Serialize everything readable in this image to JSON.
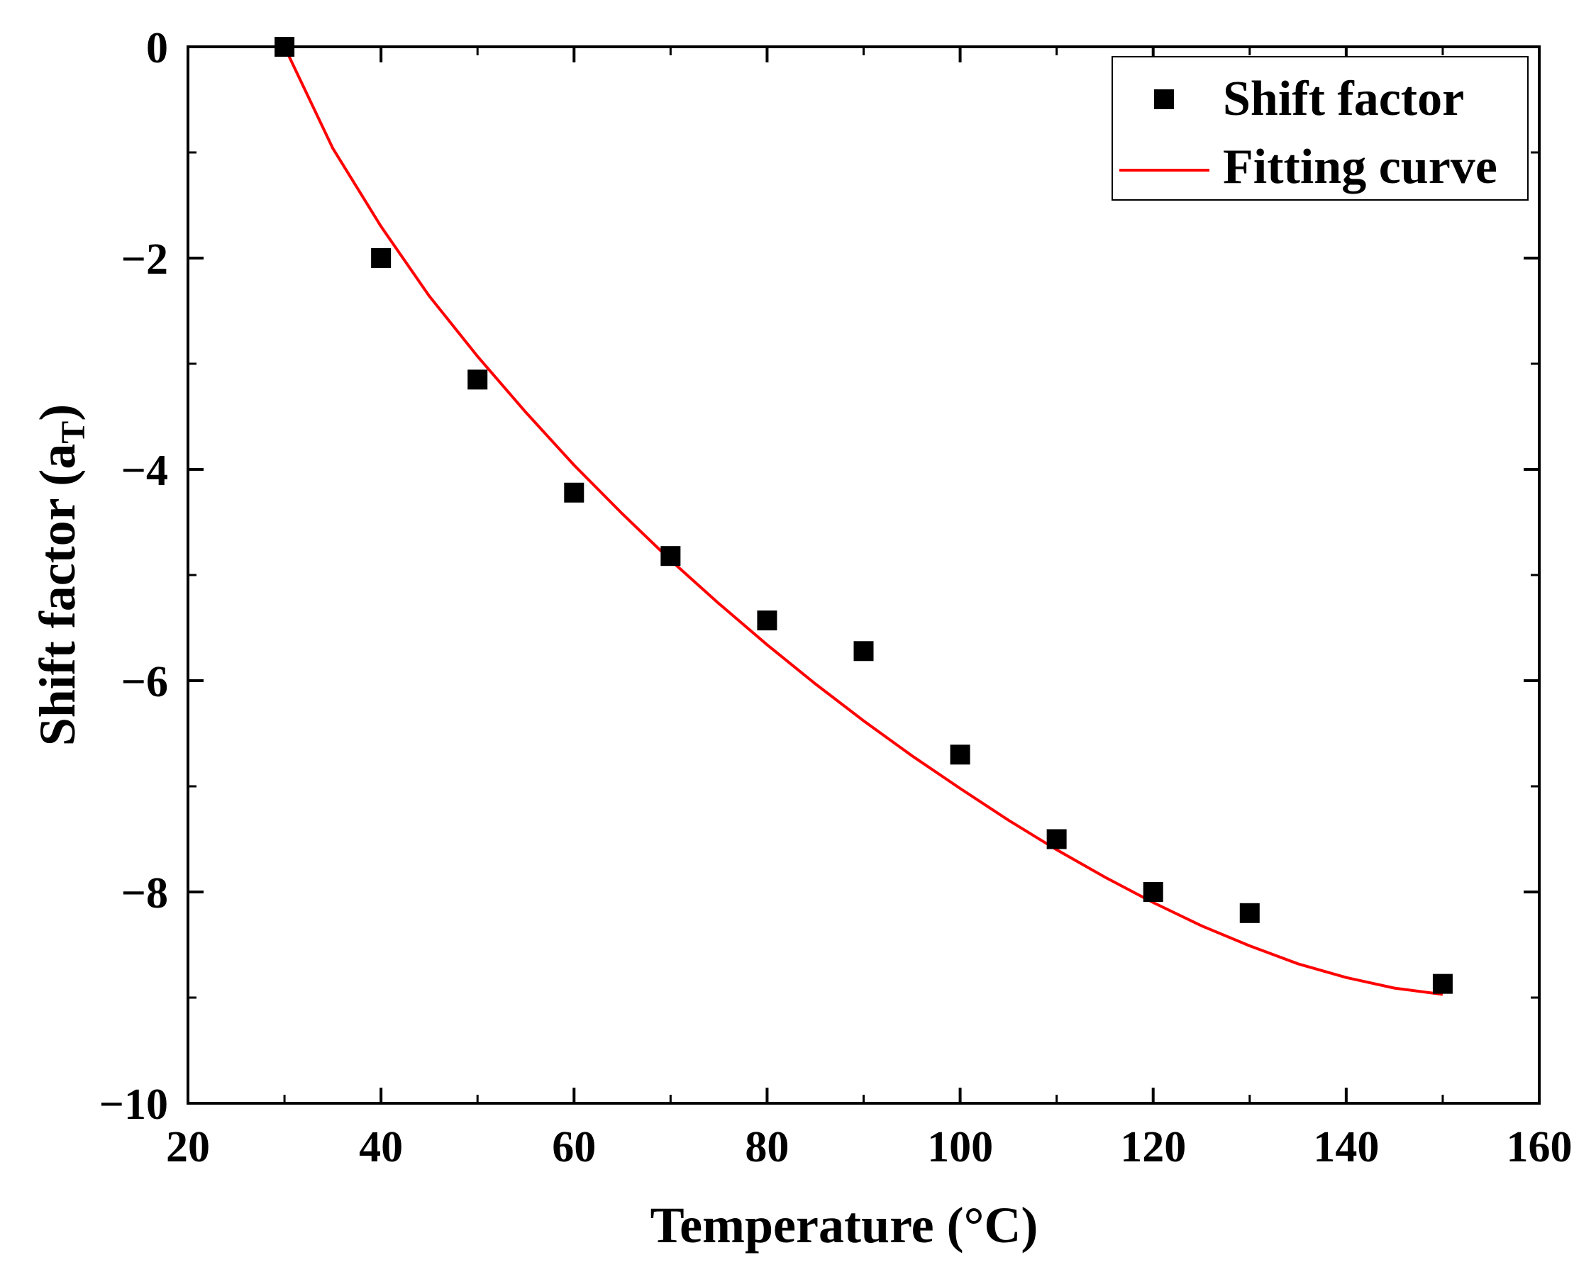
{
  "chart_data": {
    "type": "scatter",
    "xlabel": "Temperature (°C)",
    "ylabel": "Shift factor (a",
    "ylabel_subscript": "T",
    "ylabel_close": ")",
    "xlim": [
      20,
      160
    ],
    "ylim": [
      -10,
      0
    ],
    "xticks": [
      20,
      40,
      60,
      80,
      100,
      120,
      140,
      160
    ],
    "yticks": [
      0,
      -2,
      -4,
      -6,
      -8,
      -10
    ],
    "xtick_labels": [
      "20",
      "40",
      "60",
      "80",
      "100",
      "120",
      "140",
      "160"
    ],
    "ytick_labels": [
      "0",
      "−2",
      "−4",
      "−6",
      "−8",
      "−10"
    ],
    "grid": false,
    "legend_position": "top-right",
    "series": [
      {
        "name": "Shift factor",
        "kind": "scatter",
        "marker": "square",
        "color": "#000000",
        "x": [
          30,
          40,
          50,
          60,
          70,
          80,
          90,
          100,
          110,
          120,
          130,
          150
        ],
        "y": [
          0,
          -2.0,
          -3.15,
          -4.22,
          -4.82,
          -5.43,
          -5.72,
          -6.7,
          -7.5,
          -8.0,
          -8.2,
          -8.87
        ]
      },
      {
        "name": "Fitting curve",
        "kind": "line",
        "color": "#ff0000",
        "x": [
          30,
          35,
          40,
          45,
          50,
          55,
          60,
          65,
          70,
          75,
          80,
          85,
          90,
          95,
          100,
          105,
          110,
          115,
          120,
          125,
          130,
          135,
          140,
          145,
          150
        ],
        "y": [
          0.0,
          -0.96,
          -1.7,
          -2.36,
          -2.93,
          -3.46,
          -3.96,
          -4.42,
          -4.86,
          -5.27,
          -5.66,
          -6.03,
          -6.38,
          -6.71,
          -7.02,
          -7.32,
          -7.6,
          -7.86,
          -8.1,
          -8.32,
          -8.51,
          -8.68,
          -8.81,
          -8.91,
          -8.97
        ]
      }
    ]
  }
}
